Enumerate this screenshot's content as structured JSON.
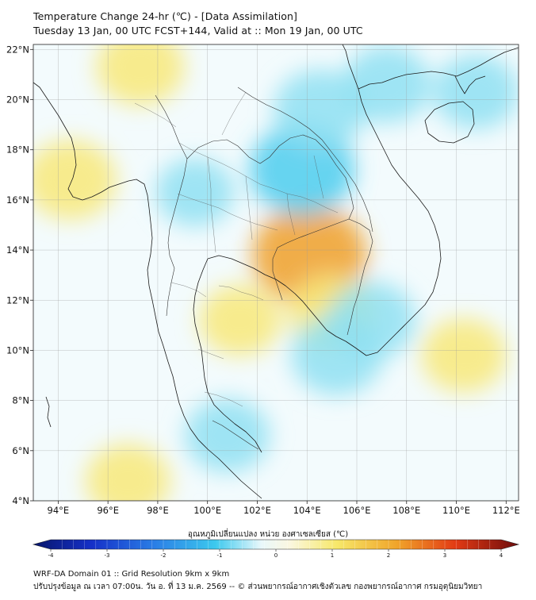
{
  "title": {
    "line1": "Temperature Change 24-hr (℃) - [Data Assimilation]",
    "line2": "Tuesday 13 Jan, 00 UTC FCST+144, Valid at :: Mon 19 Jan, 00 UTC"
  },
  "map": {
    "variable": "Temperature Change 24-hr",
    "lon_ticks": [
      "94°E",
      "96°E",
      "98°E",
      "100°E",
      "102°E",
      "104°E",
      "106°E",
      "108°E",
      "110°E",
      "112°E"
    ],
    "lat_ticks": [
      "22°N",
      "20°N",
      "18°N",
      "16°N",
      "14°N",
      "12°N",
      "10°N",
      "8°N",
      "6°N",
      "4°N"
    ],
    "lon_range": [
      93,
      112.5
    ],
    "lat_range": [
      4,
      22.2
    ],
    "grid": true,
    "colormap": "blue-white-yellow-red diverging",
    "features": [
      {
        "name": "warm anomaly west Myanmar coast",
        "type": "warm",
        "lon": 94.5,
        "lat": 16.8,
        "value": 0.9
      },
      {
        "name": "warm anomaly north Myanmar",
        "type": "warm",
        "lon": 97.3,
        "lat": 21.3,
        "value": 0.8
      },
      {
        "name": "warm anomaly Tonle Sap",
        "type": "warm",
        "lon": 104.1,
        "lat": 13.8,
        "value": 1.6
      },
      {
        "name": "warm anomaly south Cambodia",
        "type": "warm",
        "lon": 105.0,
        "lat": 11.5,
        "value": 0.8
      },
      {
        "name": "warm anomaly Gulf of Thailand",
        "type": "warm",
        "lon": 101.3,
        "lat": 11.2,
        "value": 0.6
      },
      {
        "name": "warm anomaly South China Sea",
        "type": "warm",
        "lon": 110.3,
        "lat": 9.8,
        "value": 0.7
      },
      {
        "name": "warm anomaly Andaman south",
        "type": "warm",
        "lon": 96.8,
        "lat": 4.8,
        "value": 0.7
      },
      {
        "name": "cold anomaly northeast Thailand",
        "type": "cold",
        "lon": 103.8,
        "lat": 17.2,
        "value": -1.3
      },
      {
        "name": "cold anomaly north Laos",
        "type": "cold",
        "lon": 104.5,
        "lat": 19.6,
        "value": -0.9
      },
      {
        "name": "cold anomaly Gulf of Tonkin",
        "type": "cold",
        "lon": 107.2,
        "lat": 20.6,
        "value": -0.8
      },
      {
        "name": "cold anomaly northeast",
        "type": "cold",
        "lon": 110.8,
        "lat": 20.3,
        "value": -0.7
      },
      {
        "name": "cold anomaly Mekong delta sea",
        "type": "cold",
        "lon": 105.2,
        "lat": 9.8,
        "value": -0.9
      },
      {
        "name": "cold anomaly east Cambodia",
        "type": "cold",
        "lon": 106.6,
        "lat": 11.2,
        "value": -0.8
      },
      {
        "name": "cold anomaly south Thailand",
        "type": "cold",
        "lon": 100.8,
        "lat": 6.6,
        "value": -0.7
      },
      {
        "name": "cold anomaly west Thailand",
        "type": "cold",
        "lon": 99.5,
        "lat": 16.3,
        "value": -0.5
      }
    ]
  },
  "colorbar": {
    "title": "อุณหภูมิเปลี่ยนแปลง หน่วย องศาเซลเซียส (℃)",
    "tick_labels": [
      "-4",
      "-3",
      "-2",
      "-1",
      "0",
      "1",
      "2",
      "3",
      "4"
    ],
    "min": -4,
    "max": 4,
    "extend": "both",
    "colors": {
      "cold_end": "#0a1f7a",
      "cool": "#33bfe8",
      "neutral": "#ffffff",
      "warm": "#f5e15a",
      "hot_end": "#7a0a0a"
    }
  },
  "footer": {
    "line1": "WRF-DA Domain 01 :: Grid Resolution 9km x 9km",
    "line2": "ปรับปรุงข้อมูล ณ เวลา 07:00น. วัน อ. ที่ 13 ม.ค. 2569 -- © ส่วนพยากรณ์อากาศเชิงตัวเลข กองพยากรณ์อากาศ กรมอุตุนิยมวิทยา"
  }
}
